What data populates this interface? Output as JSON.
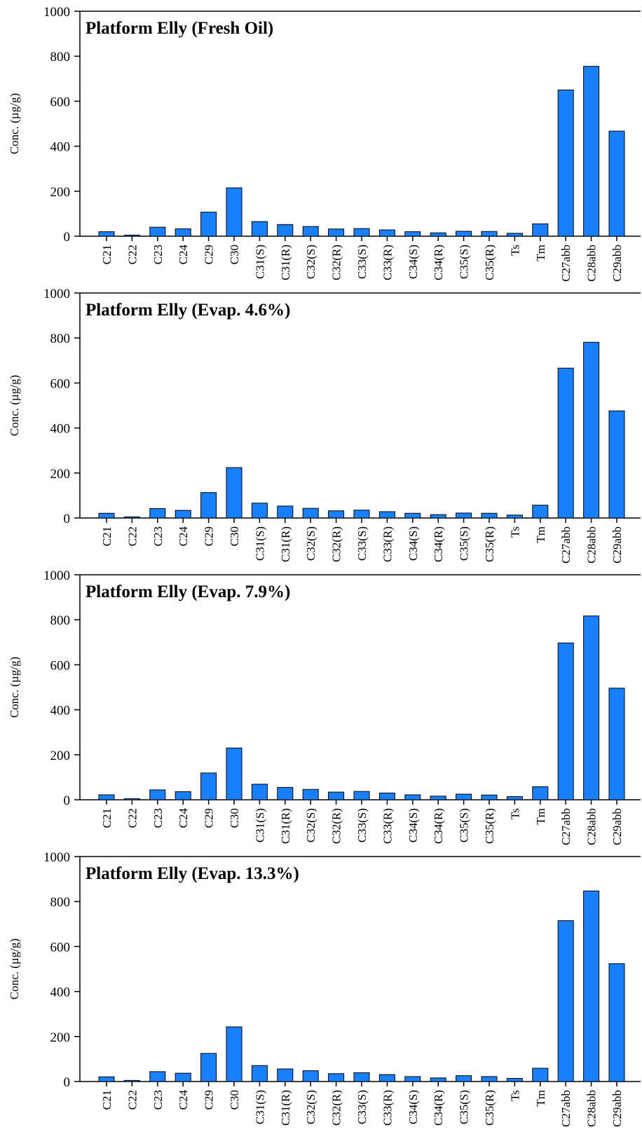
{
  "chart_data": [
    {
      "type": "bar",
      "title": "Platform Elly (Fresh Oil)",
      "ylabel": "Conc. (µg/g)",
      "xlabel": "",
      "ylim": [
        0,
        1000
      ],
      "yticks": [
        0,
        200,
        400,
        600,
        800,
        1000
      ],
      "grid": false,
      "color": "#1a80ff",
      "categories": [
        "C21",
        "C22",
        "C23",
        "C24",
        "C29",
        "C30",
        "C31(S)",
        "C31(R)",
        "C32(S)",
        "C32(R)",
        "C33(S)",
        "C33(R)",
        "C34(S)",
        "C34(R)",
        "C35(S)",
        "C35(R)",
        "Ts",
        "Tm",
        "C27abb",
        "C28abb",
        "C29abb"
      ],
      "values": [
        20,
        5,
        40,
        33,
        107,
        215,
        65,
        52,
        43,
        32,
        34,
        28,
        20,
        15,
        22,
        21,
        13,
        55,
        650,
        755,
        467
      ]
    },
    {
      "type": "bar",
      "title": "Platform Elly (Evap. 4.6%)",
      "ylabel": "Conc. (µg/g)",
      "xlabel": "",
      "ylim": [
        0,
        1000
      ],
      "yticks": [
        0,
        200,
        400,
        600,
        800,
        1000
      ],
      "grid": false,
      "color": "#1a80ff",
      "categories": [
        "C21",
        "C22",
        "C23",
        "C24",
        "C29",
        "C30",
        "C31(S)",
        "C31(R)",
        "C32(S)",
        "C32(R)",
        "C33(S)",
        "C33(R)",
        "C34(S)",
        "C34(R)",
        "C35(S)",
        "C35(R)",
        "Ts",
        "Tm",
        "C27abb",
        "C28abb",
        "C29abb"
      ],
      "values": [
        21,
        5,
        42,
        34,
        113,
        224,
        66,
        53,
        43,
        32,
        35,
        28,
        21,
        15,
        22,
        21,
        13,
        57,
        666,
        781,
        476
      ]
    },
    {
      "type": "bar",
      "title": "Platform Elly (Evap. 7.9%)",
      "ylabel": "Conc. (µg/g)",
      "xlabel": "",
      "ylim": [
        0,
        1000
      ],
      "yticks": [
        0,
        200,
        400,
        600,
        800,
        1000
      ],
      "grid": false,
      "color": "#1a80ff",
      "categories": [
        "C21",
        "C22",
        "C23",
        "C24",
        "C29",
        "C30",
        "C31(S)",
        "C31(R)",
        "C32(S)",
        "C32(R)",
        "C33(S)",
        "C33(R)",
        "C34(S)",
        "C34(R)",
        "C35(S)",
        "C35(R)",
        "Ts",
        "Tm",
        "C27abb",
        "C28abb",
        "C29abb"
      ],
      "values": [
        22,
        5,
        44,
        36,
        119,
        230,
        69,
        55,
        46,
        34,
        37,
        30,
        22,
        16,
        25,
        21,
        14,
        58,
        697,
        817,
        496
      ]
    },
    {
      "type": "bar",
      "title": "Platform Elly (Evap. 13.3%)",
      "ylabel": "Conc. (µg/g)",
      "xlabel": "",
      "ylim": [
        0,
        1000
      ],
      "yticks": [
        0,
        200,
        400,
        600,
        800,
        1000
      ],
      "grid": false,
      "color": "#1a80ff",
      "categories": [
        "C21",
        "C22",
        "C23",
        "C24",
        "C29",
        "C30",
        "C31(S)",
        "C31(R)",
        "C32(S)",
        "C32(R)",
        "C33(S)",
        "C33(R)",
        "C34(S)",
        "C34(R)",
        "C35(S)",
        "C35(R)",
        "Ts",
        "Tm",
        "C27abb",
        "C28abb",
        "C29abb"
      ],
      "values": [
        21,
        5,
        44,
        37,
        125,
        243,
        71,
        56,
        48,
        35,
        39,
        31,
        22,
        16,
        26,
        22,
        14,
        59,
        715,
        847,
        524
      ]
    }
  ]
}
